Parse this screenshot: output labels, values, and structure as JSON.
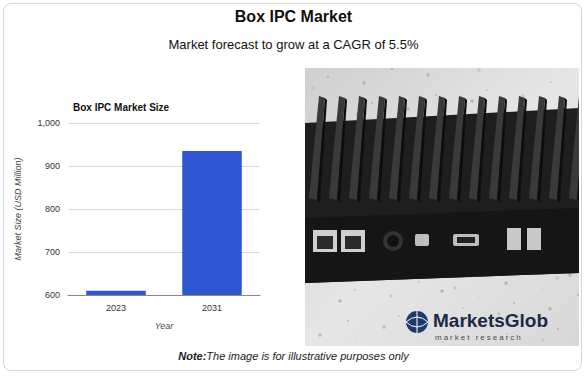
{
  "header": {
    "title": "Box IPC Market",
    "subtitle": "Market forecast to grow at a CAGR of 5.5%"
  },
  "chart_data": {
    "type": "bar",
    "title": "Box IPC Market Size",
    "x_label": "Year",
    "y_label": "Market Size (USD Million)",
    "categories": [
      "2023",
      "2031"
    ],
    "values": [
      610,
      935
    ],
    "color": "#2f56d3",
    "ylim": [
      600,
      1000
    ],
    "yticks": [
      600,
      700,
      800,
      900,
      {
        "value": 1000,
        "label": "1,000"
      }
    ],
    "grid": true,
    "data_labels": false
  },
  "logo": {
    "name": "MarketsGlob",
    "tagline": "market research"
  },
  "note": {
    "label": "Note:",
    "text": "The image is for illustrative purposes only"
  }
}
